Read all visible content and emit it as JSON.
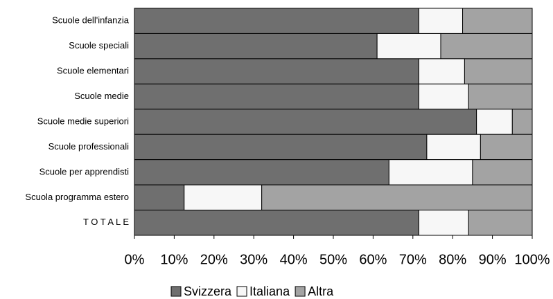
{
  "chart_data": {
    "type": "bar",
    "orientation": "horizontal",
    "stacked": true,
    "categories": [
      "Scuole dell'infanzia",
      "Scuole speciali",
      "Scuole elementari",
      "Scuole medie",
      "Scuole medie superiori",
      "Scuole professionali",
      "Scuole per apprendisti",
      "Scuola programma estero",
      "T O T A L E"
    ],
    "series": [
      {
        "name": "Svizzera",
        "color": "#6f6f6f",
        "values": [
          71.5,
          61,
          71.5,
          71.5,
          86,
          73.5,
          64,
          12.5,
          71.5
        ]
      },
      {
        "name": "Italiana",
        "color": "#f7f7f7",
        "values": [
          11,
          16,
          11.5,
          12.5,
          9,
          13.5,
          21,
          19.5,
          12.5
        ]
      },
      {
        "name": "Altra",
        "color": "#a3a3a3",
        "values": [
          17.5,
          23,
          17,
          16,
          5,
          13,
          15,
          68,
          16
        ]
      }
    ],
    "xlim": [
      0,
      100
    ],
    "xticks": [
      {
        "value": 0,
        "label": "0%"
      },
      {
        "value": 10,
        "label": "10%"
      },
      {
        "value": 20,
        "label": "20%"
      },
      {
        "value": 30,
        "label": "30%"
      },
      {
        "value": 40,
        "label": "40%"
      },
      {
        "value": 50,
        "label": "50%"
      },
      {
        "value": 60,
        "label": "60%"
      },
      {
        "value": 70,
        "label": "70%"
      },
      {
        "value": 80,
        "label": "80%"
      },
      {
        "value": 90,
        "label": "90%"
      },
      {
        "value": 100,
        "label": "100%"
      }
    ],
    "legend": "bottom"
  }
}
